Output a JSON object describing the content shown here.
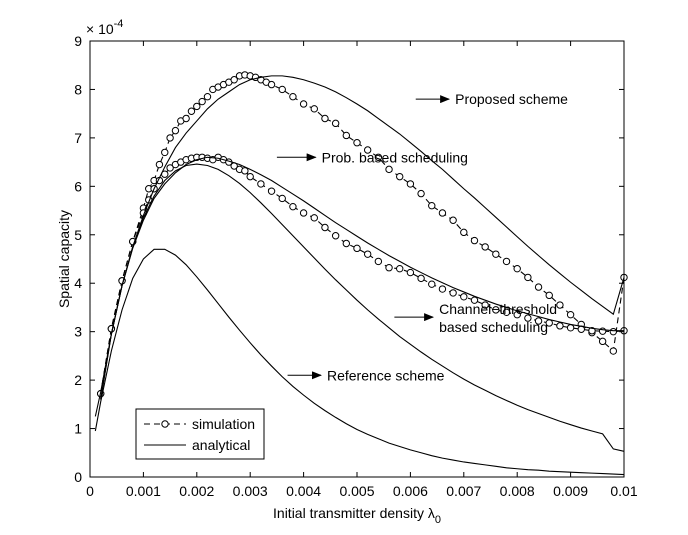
{
  "chart_data": {
    "type": "line",
    "title": "",
    "xlabel": "Initial transmitter density λ",
    "xlabel_subscript": "0",
    "ylabel": "Spatial capacity",
    "y_exponent_label": "× 10",
    "y_exponent_power": "-4",
    "xlim": [
      0,
      0.01
    ],
    "ylim": [
      0,
      9
    ],
    "x_ticks": [
      0,
      0.001,
      0.002,
      0.003,
      0.004,
      0.005,
      0.006,
      0.007,
      0.008,
      0.009,
      0.01
    ],
    "x_tick_labels": [
      "0",
      "0.001",
      "0.002",
      "0.003",
      "0.004",
      "0.005",
      "0.006",
      "0.007",
      "0.008",
      "0.009",
      "0.01"
    ],
    "y_ticks": [
      0,
      1,
      2,
      3,
      4,
      5,
      6,
      7,
      8,
      9
    ],
    "y_tick_labels": [
      "0",
      "1",
      "2",
      "3",
      "4",
      "5",
      "6",
      "7",
      "8",
      "9"
    ],
    "grid": false,
    "legend": {
      "position": "bottom-left",
      "entries": [
        {
          "label": "simulation",
          "style": "dashed-circle"
        },
        {
          "label": "analytical",
          "style": "solid"
        }
      ]
    },
    "series": [
      {
        "name": "Proposed scheme (simulation)",
        "style": "dashed-circle",
        "x": [
          0.0002,
          0.0004,
          0.0006,
          0.0008,
          0.001,
          0.0011,
          0.0012,
          0.0013,
          0.0014,
          0.0015,
          0.0016,
          0.0017,
          0.0018,
          0.0019,
          0.002,
          0.0021,
          0.0022,
          0.0023,
          0.0024,
          0.0025,
          0.0026,
          0.0027,
          0.0028,
          0.0029,
          0.003,
          0.0031,
          0.0032,
          0.0033,
          0.0034,
          0.0036,
          0.0038,
          0.004,
          0.0042,
          0.0044,
          0.0046,
          0.0048,
          0.005,
          0.0052,
          0.0054,
          0.0056,
          0.0058,
          0.006,
          0.0062,
          0.0064,
          0.0066,
          0.0068,
          0.007,
          0.0072,
          0.0074,
          0.0076,
          0.0078,
          0.008,
          0.0082,
          0.0084,
          0.0086,
          0.0088,
          0.009,
          0.0092,
          0.0094,
          0.0096,
          0.0098,
          0.01
        ],
        "values": [
          1.72,
          3.06,
          4.05,
          4.86,
          5.55,
          5.95,
          6.12,
          6.45,
          6.7,
          7.0,
          7.15,
          7.35,
          7.4,
          7.55,
          7.65,
          7.75,
          7.85,
          8.0,
          8.05,
          8.1,
          8.15,
          8.2,
          8.28,
          8.3,
          8.28,
          8.25,
          8.2,
          8.15,
          8.1,
          8.0,
          7.85,
          7.7,
          7.6,
          7.4,
          7.3,
          7.05,
          6.9,
          6.75,
          6.6,
          6.35,
          6.2,
          6.05,
          5.85,
          5.6,
          5.45,
          5.3,
          5.05,
          4.88,
          4.75,
          4.6,
          4.45,
          4.3,
          4.12,
          3.92,
          3.75,
          3.55,
          3.35,
          3.15,
          2.98,
          2.8,
          2.6,
          4.12
        ]
      },
      {
        "name": "Prob. based scheduling (simulation)",
        "style": "dashed-circle",
        "x": [
          0.0002,
          0.0004,
          0.0006,
          0.0008,
          0.001,
          0.0011,
          0.0012,
          0.0013,
          0.0014,
          0.0015,
          0.0016,
          0.0017,
          0.0018,
          0.0019,
          0.002,
          0.0021,
          0.0022,
          0.0023,
          0.0024,
          0.0025,
          0.0026,
          0.0027,
          0.0028,
          0.0029,
          0.003,
          0.0032,
          0.0034,
          0.0036,
          0.0038,
          0.004,
          0.0042,
          0.0044,
          0.0046,
          0.0048,
          0.005,
          0.0052,
          0.0054,
          0.0056,
          0.0058,
          0.006,
          0.0062,
          0.0064,
          0.0066,
          0.0068,
          0.007,
          0.0072,
          0.0074,
          0.0076,
          0.0078,
          0.008,
          0.0082,
          0.0084,
          0.0086,
          0.0088,
          0.009,
          0.0092,
          0.0094,
          0.0096,
          0.0098,
          0.01
        ],
        "values": [
          1.72,
          3.06,
          4.05,
          4.86,
          5.45,
          5.72,
          5.95,
          6.12,
          6.25,
          6.38,
          6.45,
          6.5,
          6.55,
          6.58,
          6.6,
          6.6,
          6.58,
          6.55,
          6.6,
          6.55,
          6.5,
          6.42,
          6.35,
          6.32,
          6.2,
          6.05,
          5.9,
          5.75,
          5.58,
          5.45,
          5.35,
          5.15,
          4.98,
          4.82,
          4.72,
          4.6,
          4.45,
          4.32,
          4.3,
          4.22,
          4.1,
          3.98,
          3.88,
          3.8,
          3.72,
          3.65,
          3.55,
          3.45,
          3.4,
          3.35,
          3.28,
          3.22,
          3.18,
          3.12,
          3.08,
          3.05,
          3.02,
          3.01,
          3.0,
          3.02
        ]
      },
      {
        "name": "Proposed scheme (analytical)",
        "style": "solid",
        "x": [
          0.0002,
          0.0004,
          0.0006,
          0.0008,
          0.001,
          0.0012,
          0.0014,
          0.0016,
          0.0018,
          0.002,
          0.0022,
          0.0024,
          0.0026,
          0.0028,
          0.003,
          0.0032,
          0.0034,
          0.0036,
          0.0038,
          0.004,
          0.0042,
          0.0044,
          0.0046,
          0.0048,
          0.005,
          0.0052,
          0.0054,
          0.0056,
          0.0058,
          0.006,
          0.0062,
          0.0064,
          0.0066,
          0.0068,
          0.007,
          0.0072,
          0.0074,
          0.0076,
          0.0078,
          0.008,
          0.0082,
          0.0084,
          0.0086,
          0.0088,
          0.009,
          0.0092,
          0.0094,
          0.0096,
          0.0098,
          0.01
        ],
        "values": [
          1.6,
          2.95,
          3.95,
          4.75,
          5.4,
          5.95,
          6.4,
          6.8,
          7.1,
          7.35,
          7.6,
          7.8,
          7.95,
          8.1,
          8.2,
          8.25,
          8.28,
          8.28,
          8.25,
          8.2,
          8.13,
          8.05,
          7.95,
          7.83,
          7.7,
          7.56,
          7.4,
          7.24,
          7.08,
          6.9,
          6.72,
          6.53,
          6.35,
          6.15,
          5.95,
          5.76,
          5.56,
          5.36,
          5.16,
          4.96,
          4.76,
          4.57,
          4.38,
          4.2,
          4.02,
          3.85,
          3.68,
          3.52,
          3.36,
          4.12
        ]
      },
      {
        "name": "Prob. based scheduling (analytical)",
        "style": "solid",
        "x": [
          0.0002,
          0.0004,
          0.0006,
          0.0008,
          0.001,
          0.0012,
          0.0014,
          0.0016,
          0.0018,
          0.002,
          0.0022,
          0.0024,
          0.0026,
          0.0028,
          0.003,
          0.0032,
          0.0034,
          0.0036,
          0.0038,
          0.004,
          0.0042,
          0.0044,
          0.0046,
          0.0048,
          0.005,
          0.0052,
          0.0054,
          0.0056,
          0.0058,
          0.006,
          0.0062,
          0.0064,
          0.0066,
          0.0068,
          0.007,
          0.0072,
          0.0074,
          0.0076,
          0.0078,
          0.008,
          0.0082,
          0.0084,
          0.0086,
          0.0088,
          0.009,
          0.0092,
          0.0094,
          0.0096,
          0.0098,
          0.01
        ],
        "values": [
          1.6,
          2.95,
          3.95,
          4.72,
          5.3,
          5.75,
          6.05,
          6.28,
          6.45,
          6.55,
          6.6,
          6.58,
          6.52,
          6.45,
          6.35,
          6.24,
          6.12,
          5.98,
          5.84,
          5.7,
          5.55,
          5.4,
          5.25,
          5.11,
          4.97,
          4.83,
          4.7,
          4.57,
          4.45,
          4.33,
          4.22,
          4.11,
          4.01,
          3.91,
          3.82,
          3.73,
          3.65,
          3.57,
          3.5,
          3.43,
          3.37,
          3.31,
          3.25,
          3.2,
          3.15,
          3.11,
          3.07,
          3.04,
          3.02,
          3.02
        ]
      },
      {
        "name": "Channel-threshold based scheduling (analytical)",
        "style": "solid",
        "x": [
          0.0001,
          0.0002,
          0.0004,
          0.0006,
          0.0008,
          0.001,
          0.0012,
          0.0014,
          0.0016,
          0.0018,
          0.002,
          0.0022,
          0.0024,
          0.0026,
          0.0028,
          0.003,
          0.0032,
          0.0034,
          0.0036,
          0.0038,
          0.004,
          0.0042,
          0.0044,
          0.0046,
          0.0048,
          0.005,
          0.0052,
          0.0054,
          0.0056,
          0.0058,
          0.006,
          0.0062,
          0.0064,
          0.0066,
          0.0068,
          0.007,
          0.0072,
          0.0074,
          0.0076,
          0.0078,
          0.008,
          0.0082,
          0.0084,
          0.0086,
          0.0088,
          0.009,
          0.0092,
          0.0094,
          0.0096,
          0.0098,
          0.01
        ],
        "values": [
          1.25,
          1.75,
          2.95,
          3.95,
          4.75,
          5.35,
          5.8,
          6.12,
          6.32,
          6.43,
          6.46,
          6.43,
          6.35,
          6.22,
          6.06,
          5.87,
          5.66,
          5.44,
          5.21,
          4.98,
          4.75,
          4.52,
          4.29,
          4.07,
          3.86,
          3.65,
          3.45,
          3.26,
          3.08,
          2.9,
          2.74,
          2.58,
          2.43,
          2.29,
          2.15,
          2.02,
          1.9,
          1.79,
          1.68,
          1.58,
          1.48,
          1.39,
          1.31,
          1.23,
          1.15,
          1.08,
          1.01,
          0.95,
          0.89,
          0.58,
          0.53
        ]
      },
      {
        "name": "Reference scheme (analytical)",
        "style": "solid",
        "x": [
          0.0001,
          0.0002,
          0.0004,
          0.0006,
          0.0008,
          0.001,
          0.0012,
          0.0014,
          0.0016,
          0.0018,
          0.002,
          0.0022,
          0.0024,
          0.0026,
          0.0028,
          0.003,
          0.0032,
          0.0034,
          0.0036,
          0.0038,
          0.004,
          0.0042,
          0.0044,
          0.0046,
          0.0048,
          0.005,
          0.0052,
          0.0054,
          0.0056,
          0.0058,
          0.006,
          0.0062,
          0.0064,
          0.0066,
          0.0068,
          0.007,
          0.0072,
          0.0074,
          0.0076,
          0.0078,
          0.008,
          0.0082,
          0.0084,
          0.0086,
          0.0088,
          0.009,
          0.0092,
          0.0094,
          0.0096,
          0.0098,
          0.01
        ],
        "values": [
          0.95,
          1.55,
          2.6,
          3.45,
          4.1,
          4.5,
          4.7,
          4.7,
          4.58,
          4.38,
          4.13,
          3.86,
          3.58,
          3.3,
          3.03,
          2.77,
          2.52,
          2.29,
          2.07,
          1.87,
          1.69,
          1.52,
          1.37,
          1.23,
          1.1,
          0.98,
          0.88,
          0.79,
          0.7,
          0.63,
          0.56,
          0.5,
          0.44,
          0.39,
          0.35,
          0.31,
          0.28,
          0.25,
          0.22,
          0.19,
          0.17,
          0.15,
          0.14,
          0.12,
          0.11,
          0.1,
          0.09,
          0.08,
          0.07,
          0.06,
          0.05
        ]
      }
    ],
    "annotations": [
      {
        "text": "Proposed scheme",
        "arrow_to": [
          0.0061,
          7.8
        ],
        "text_at": [
          0.0068,
          7.8
        ]
      },
      {
        "text": "Prob. based scheduling",
        "arrow_to": [
          0.0035,
          6.6
        ],
        "text_at": [
          0.0043,
          6.6
        ]
      },
      {
        "text": "Channel−threshold",
        "text_line2": "based scheduling",
        "arrow_to": [
          0.0057,
          3.3
        ],
        "text_at": [
          0.0065,
          3.3
        ]
      },
      {
        "text": "Reference scheme",
        "arrow_to": [
          0.0037,
          2.1
        ],
        "text_at": [
          0.0044,
          2.1
        ]
      }
    ]
  }
}
